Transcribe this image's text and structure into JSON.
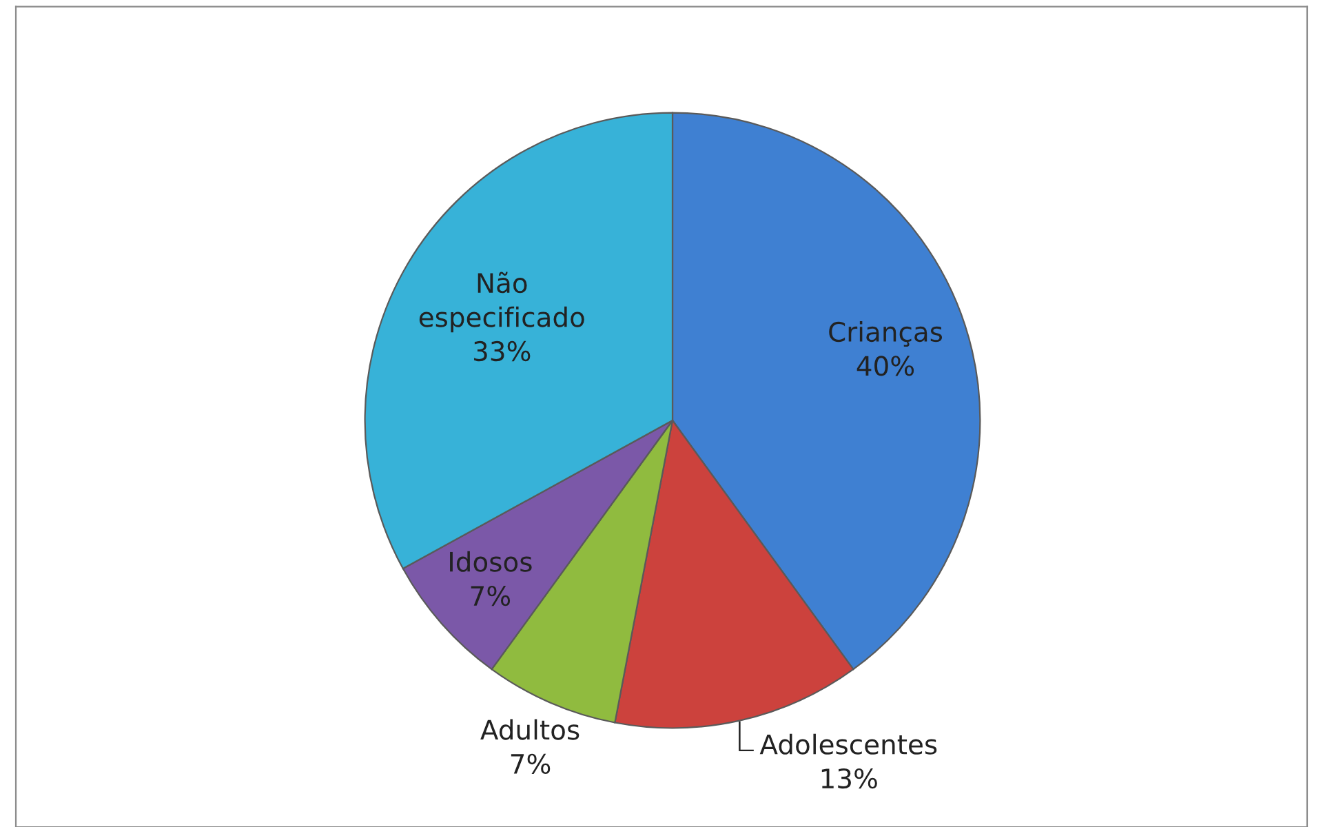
{
  "chart_data": {
    "type": "pie",
    "categories": [
      "Crianças",
      "Adolescentes",
      "Adultos",
      "Idosos",
      "Não\nespecificado"
    ],
    "values": [
      40,
      13,
      7,
      7,
      33
    ],
    "colors": [
      "#3f80d2",
      "#cc423d",
      "#90bb3f",
      "#7b58a8",
      "#37b2d8"
    ],
    "value_labels": [
      "40%",
      "13%",
      "7%",
      "7%",
      "33%"
    ],
    "legend": false
  }
}
